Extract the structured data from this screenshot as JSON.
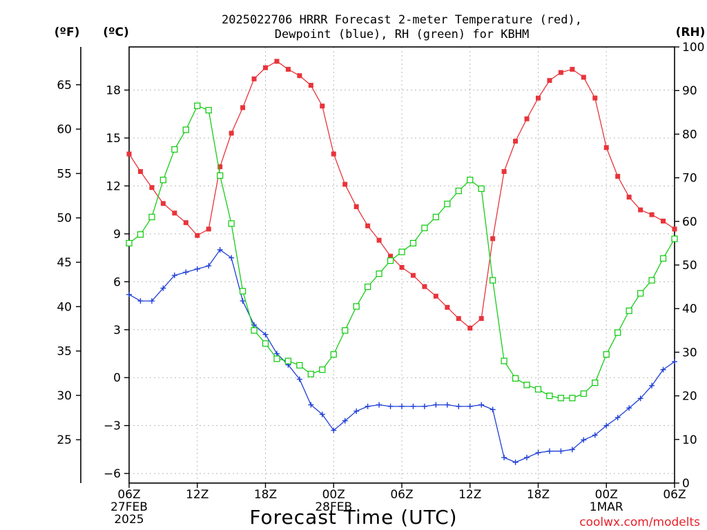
{
  "chart_data": {
    "type": "line",
    "title_lines": [
      "2025022706 HRRR Forecast 2-meter Temperature (red),",
      "Dewpoint (blue), RH (green) for KBHM"
    ],
    "xlabel": "Forecast Time (UTC)",
    "credit": "coolwx.com/modelts",
    "units": {
      "fahrenheit": "(ºF)",
      "celsius": "(ºC)",
      "rh": "(RH)"
    },
    "x_range_hours": [
      0,
      48
    ],
    "x_ticks": [
      {
        "hour": 0,
        "lines": [
          "06Z",
          "27FEB",
          "2025"
        ]
      },
      {
        "hour": 6,
        "lines": [
          "12Z"
        ]
      },
      {
        "hour": 12,
        "lines": [
          "18Z"
        ]
      },
      {
        "hour": 18,
        "lines": [
          "00Z",
          "28FEB"
        ]
      },
      {
        "hour": 24,
        "lines": [
          "06Z"
        ]
      },
      {
        "hour": 30,
        "lines": [
          "12Z"
        ]
      },
      {
        "hour": 36,
        "lines": [
          "18Z"
        ]
      },
      {
        "hour": 42,
        "lines": [
          "00Z",
          "1MAR"
        ]
      },
      {
        "hour": 48,
        "lines": [
          "06Z"
        ]
      }
    ],
    "celsius_axis": {
      "range": [
        -6.6,
        20.7
      ],
      "ticks": [
        -6,
        -3,
        0,
        3,
        6,
        9,
        12,
        15,
        18
      ]
    },
    "fahrenheit_axis": {
      "ticks": [
        25,
        30,
        35,
        40,
        45,
        50,
        55,
        60,
        65
      ]
    },
    "rh_axis": {
      "range": [
        0,
        100
      ],
      "ticks": [
        0,
        10,
        20,
        30,
        40,
        50,
        60,
        70,
        80,
        90,
        100
      ]
    },
    "series": [
      {
        "name": "Temperature",
        "axis": "celsius",
        "color": "#e8343a",
        "marker": "filled-square",
        "values": [
          14.0,
          12.9,
          11.9,
          10.9,
          10.3,
          9.7,
          8.9,
          9.3,
          13.2,
          15.3,
          16.9,
          18.7,
          19.4,
          19.8,
          19.3,
          18.9,
          18.3,
          17.0,
          14.0,
          12.1,
          10.7,
          9.5,
          8.6,
          7.6,
          6.9,
          6.4,
          5.7,
          5.1,
          4.4,
          3.7,
          3.1,
          3.7,
          8.7,
          12.9,
          14.8,
          16.2,
          17.5,
          18.6,
          19.1,
          19.3,
          18.8,
          17.5,
          14.4,
          12.6,
          11.3,
          10.5,
          10.2,
          9.8,
          9.3
        ]
      },
      {
        "name": "Dewpoint",
        "axis": "celsius",
        "color": "#1f3fd6",
        "marker": "plus",
        "values": [
          5.2,
          4.8,
          4.8,
          5.6,
          6.4,
          6.6,
          6.8,
          7.0,
          8.0,
          7.5,
          4.8,
          3.3,
          2.7,
          1.5,
          0.8,
          -0.1,
          -1.7,
          -2.3,
          -3.3,
          -2.7,
          -2.1,
          -1.8,
          -1.7,
          -1.8,
          -1.8,
          -1.8,
          -1.8,
          -1.7,
          -1.7,
          -1.8,
          -1.8,
          -1.7,
          -2.0,
          -5.0,
          -5.3,
          -5.0,
          -4.7,
          -4.6,
          -4.6,
          -4.5,
          -3.9,
          -3.6,
          -3.0,
          -2.5,
          -1.9,
          -1.3,
          -0.5,
          0.5,
          1.0
        ]
      },
      {
        "name": "RH",
        "axis": "rh",
        "color": "#18cc18",
        "marker": "open-square",
        "values": [
          55.0,
          57.0,
          61.0,
          69.5,
          76.5,
          81.0,
          86.5,
          85.5,
          70.5,
          59.5,
          44.0,
          35.0,
          32.0,
          28.5,
          28.0,
          27.0,
          25.0,
          26.0,
          29.5,
          35.0,
          40.5,
          45.0,
          48.0,
          51.0,
          53.0,
          55.0,
          58.5,
          61.0,
          64.0,
          67.0,
          69.5,
          67.5,
          46.5,
          28.0,
          24.0,
          22.5,
          21.5,
          20.0,
          19.5,
          19.5,
          20.5,
          23.0,
          29.5,
          34.5,
          39.5,
          43.5,
          46.5,
          51.5,
          56.0
        ]
      }
    ]
  }
}
